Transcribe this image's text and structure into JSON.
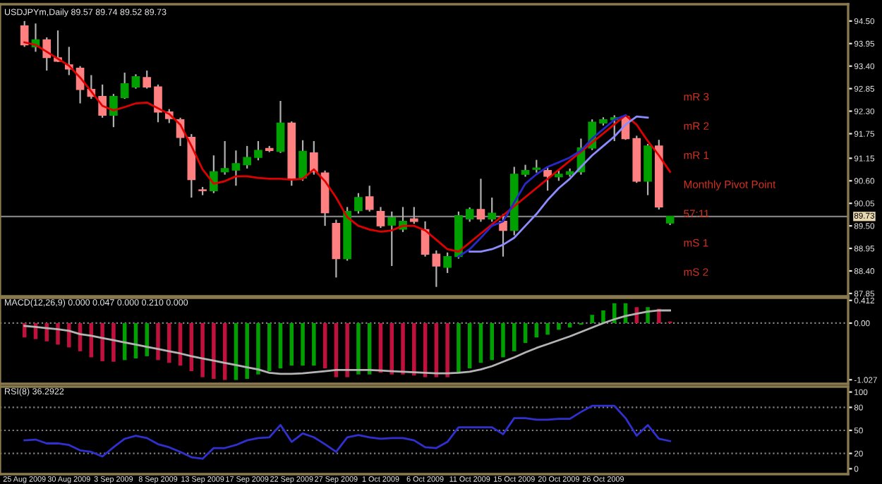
{
  "chart_data": [
    {
      "type": "candlestick",
      "title": "USDJPYm,Daily 89.57 89.74 89.52 89.73",
      "categories": [
        null,
        null,
        null,
        null,
        null,
        null,
        null,
        null,
        null,
        null,
        null,
        null,
        null,
        null,
        null,
        null,
        null,
        null,
        null,
        null,
        null,
        null,
        null,
        null,
        null,
        null,
        null,
        null,
        null,
        null,
        null,
        null,
        null,
        null,
        null,
        null,
        null,
        null,
        null,
        null,
        null,
        null,
        null,
        null,
        null,
        null,
        null,
        null,
        null,
        null,
        null,
        null,
        null,
        null,
        null,
        null,
        null,
        null,
        null
      ],
      "ohlc": [
        [
          94.38,
          94.5,
          93.87,
          93.92
        ],
        [
          93.87,
          94.44,
          93.75,
          94.04
        ],
        [
          94.04,
          94.1,
          93.29,
          93.61
        ],
        [
          93.6,
          94.27,
          93.5,
          93.52
        ],
        [
          93.43,
          93.87,
          93.18,
          93.33
        ],
        [
          93.35,
          93.4,
          92.49,
          92.83
        ],
        [
          92.83,
          93.18,
          92.6,
          92.66
        ],
        [
          92.66,
          92.95,
          92.14,
          92.2
        ],
        [
          92.2,
          92.72,
          91.91,
          92.66
        ],
        [
          92.63,
          93.24,
          92.6,
          92.97
        ],
        [
          92.89,
          93.2,
          92.85,
          93.14
        ],
        [
          93.12,
          93.29,
          92.85,
          92.89
        ],
        [
          92.89,
          92.95,
          92.03,
          92.28
        ],
        [
          92.28,
          92.35,
          92.01,
          92.12
        ],
        [
          92.09,
          92.14,
          91.45,
          91.66
        ],
        [
          91.66,
          91.74,
          90.19,
          90.63
        ],
        [
          90.38,
          90.45,
          90.25,
          90.36
        ],
        [
          90.36,
          91.22,
          90.3,
          90.82
        ],
        [
          90.82,
          91.57,
          90.75,
          90.9
        ],
        [
          90.86,
          91.34,
          90.48,
          91.02
        ],
        [
          90.99,
          91.45,
          90.9,
          91.17
        ],
        [
          91.17,
          91.57,
          91.1,
          91.34
        ],
        [
          91.39,
          91.45,
          91.3,
          91.34
        ],
        [
          91.32,
          92.55,
          91.28,
          92.01
        ],
        [
          92.01,
          92.05,
          90.48,
          90.67
        ],
        [
          90.67,
          91.59,
          90.6,
          91.32
        ],
        [
          91.28,
          91.57,
          90.75,
          90.82
        ],
        [
          90.79,
          90.85,
          89.5,
          89.82
        ],
        [
          89.56,
          89.65,
          88.24,
          88.7
        ],
        [
          88.7,
          89.96,
          88.65,
          89.85
        ],
        [
          89.87,
          90.3,
          89.8,
          90.19
        ],
        [
          90.21,
          90.48,
          89.85,
          89.9
        ],
        [
          89.85,
          89.96,
          89.45,
          89.5
        ],
        [
          89.52,
          89.85,
          88.52,
          89.7
        ],
        [
          89.42,
          89.96,
          89.35,
          89.61
        ],
        [
          89.67,
          89.96,
          89.55,
          89.61
        ],
        [
          89.41,
          89.61,
          88.75,
          88.81
        ],
        [
          88.81,
          88.9,
          88.01,
          88.52
        ],
        [
          88.49,
          88.85,
          88.35,
          88.75
        ],
        [
          88.75,
          89.85,
          88.7,
          89.75
        ],
        [
          89.67,
          89.95,
          89.6,
          89.9
        ],
        [
          89.9,
          90.65,
          89.6,
          89.67
        ],
        [
          89.67,
          90.19,
          89.6,
          89.81
        ],
        [
          89.61,
          89.79,
          88.75,
          89.39
        ],
        [
          89.39,
          90.94,
          89.27,
          90.76
        ],
        [
          90.76,
          90.99,
          90.7,
          90.85
        ],
        [
          90.88,
          91.11,
          90.8,
          90.91
        ],
        [
          90.85,
          90.94,
          90.36,
          90.71
        ],
        [
          90.7,
          90.85,
          90.6,
          90.76
        ],
        [
          90.76,
          90.9,
          90.7,
          90.82
        ],
        [
          90.82,
          91.63,
          90.75,
          91.4
        ],
        [
          91.4,
          92.1,
          91.35,
          92.03
        ],
        [
          92.01,
          92.15,
          91.95,
          92.09
        ],
        [
          92.09,
          92.2,
          91.57,
          92.14
        ],
        [
          92.17,
          92.2,
          91.6,
          91.63
        ],
        [
          91.63,
          91.7,
          90.55,
          90.59
        ],
        [
          90.59,
          91.5,
          90.25,
          91.45
        ],
        [
          91.45,
          91.6,
          89.9,
          89.96
        ],
        [
          89.57,
          89.74,
          89.52,
          89.73
        ]
      ],
      "series": [
        {
          "type": "line",
          "color": "#e00000",
          "values": [
            93.98,
            93.92,
            93.75,
            93.58,
            93.41,
            93.12,
            92.78,
            92.43,
            92.32,
            92.4,
            92.49,
            92.51,
            92.37,
            92.23,
            91.97,
            91.45,
            90.88,
            90.53,
            90.59,
            90.71,
            90.71,
            90.67,
            90.65,
            90.65,
            90.63,
            90.65,
            90.88,
            90.59,
            90.19,
            89.71,
            89.5,
            89.41,
            89.36,
            89.39,
            89.5,
            89.5,
            89.39,
            89.16,
            88.93,
            88.87,
            null,
            null,
            null,
            null,
            null,
            null,
            null,
            null,
            null,
            null,
            null,
            null,
            null,
            null,
            92.2,
            91.97,
            91.57,
            91.22,
            90.82
          ]
        },
        {
          "type": "line",
          "color": "#2828c8",
          "values": [
            null,
            null,
            null,
            null,
            null,
            null,
            null,
            null,
            null,
            null,
            null,
            null,
            null,
            null,
            null,
            null,
            null,
            null,
            null,
            null,
            null,
            null,
            null,
            null,
            null,
            null,
            null,
            null,
            null,
            null,
            null,
            null,
            null,
            null,
            null,
            null,
            null,
            null,
            null,
            88.75,
            88.93,
            89.21,
            89.5,
            89.61,
            90.07,
            90.53,
            90.76,
            90.94,
            91.05,
            91.17,
            91.34,
            91.63,
            91.86,
            92.09,
            92.2,
            null,
            null,
            null,
            null
          ]
        },
        {
          "type": "line",
          "color": "#8c8cff",
          "values": [
            null,
            null,
            null,
            null,
            null,
            null,
            null,
            null,
            null,
            null,
            null,
            null,
            null,
            null,
            null,
            null,
            null,
            null,
            null,
            null,
            null,
            null,
            null,
            null,
            null,
            null,
            null,
            null,
            null,
            null,
            null,
            null,
            null,
            null,
            null,
            null,
            null,
            null,
            null,
            null,
            88.87,
            88.87,
            88.93,
            89.04,
            89.21,
            89.5,
            89.79,
            90.13,
            90.42,
            90.65,
            90.94,
            91.22,
            91.45,
            91.68,
            91.97,
            92.17,
            92.14,
            null,
            null
          ]
        }
      ],
      "ylim": [
        87.78,
        94.91
      ],
      "yticks": [
        {
          "value": 94.5,
          "label": "94.50"
        },
        93.95,
        {
          "value": 93.4,
          "label": "93.40"
        },
        92.85,
        {
          "value": 92.3,
          "label": "92.30"
        },
        91.75,
        91.15,
        {
          "value": 90.6,
          "label": "90.60"
        },
        90.05,
        {
          "value": 89.5,
          "label": "89.50"
        },
        88.95,
        {
          "value": 88.4,
          "label": "88.40"
        },
        87.85
      ],
      "ref_lines": [
        {
          "axis": "y",
          "value": 89.73,
          "label": "89.73",
          "color": "#808080"
        }
      ],
      "annotations": [
        "mR 3",
        "mR 2",
        "mR 1",
        "Monthly Pivot Point",
        "57:11",
        "mS 1",
        "mS 2"
      ],
      "tick_labels": "y"
    },
    {
      "type": "bar",
      "title": "MACD(12,26,9) 0.000 0.047 0.000 0.210 0.000",
      "categories": [
        null,
        null,
        null,
        null,
        null,
        null,
        null,
        null,
        null,
        null,
        null,
        null,
        null,
        null,
        null,
        null,
        null,
        null,
        null,
        null,
        null,
        null,
        null,
        null,
        null,
        null,
        null,
        null,
        null,
        null,
        null,
        null,
        null,
        null,
        null,
        null,
        null,
        null,
        null,
        null,
        null,
        null,
        null,
        null,
        null,
        null,
        null,
        null,
        null,
        null,
        null,
        null,
        null,
        null,
        null,
        null,
        null,
        null,
        null
      ],
      "series": [
        {
          "type": "bar",
          "values": [
            -0.26,
            -0.29,
            -0.33,
            -0.39,
            -0.44,
            -0.51,
            -0.62,
            -0.69,
            -0.7,
            -0.67,
            -0.64,
            -0.6,
            -0.67,
            -0.72,
            -0.77,
            -0.87,
            -0.98,
            -1.01,
            -1.03,
            -1.03,
            -1.01,
            -0.93,
            -0.87,
            -0.82,
            -0.77,
            -0.77,
            -0.77,
            -0.82,
            -0.98,
            -0.98,
            -0.93,
            -0.93,
            -0.9,
            -0.93,
            -0.93,
            -0.95,
            -0.98,
            -0.98,
            -0.98,
            -0.9,
            -0.82,
            -0.72,
            -0.67,
            -0.62,
            -0.51,
            -0.36,
            -0.26,
            -0.21,
            -0.12,
            -0.08,
            -0.03,
            0.15,
            0.23,
            0.36,
            0.36,
            0.29,
            0.29,
            0.26,
            0.03
          ],
          "colors": [
            "#c0103c",
            "#c0103c",
            "#c0103c",
            "#c0103c",
            "#c0103c",
            "#c0103c",
            "#c0103c",
            "#c0103c",
            "#c0103c",
            "#00a000",
            "#00a000",
            "#00a000",
            "#c0103c",
            "#c0103c",
            "#c0103c",
            "#c0103c",
            "#c0103c",
            "#c0103c",
            "#c0103c",
            "#00a000",
            "#00a000",
            "#00a000",
            "#00a000",
            "#00a000",
            "#00a000",
            "#00a000",
            "#00a000",
            "#c0103c",
            "#c0103c",
            "#c0103c",
            "#00a000",
            "#00a000",
            "#c0103c",
            "#c0103c",
            "#c0103c",
            "#c0103c",
            "#c0103c",
            "#c0103c",
            "#c0103c",
            "#00a000",
            "#00a000",
            "#00a000",
            "#00a000",
            "#00a000",
            "#00a000",
            "#00a000",
            "#00a000",
            "#00a000",
            "#00a000",
            "#00a000",
            "#00a000",
            "#00a000",
            "#00a000",
            "#00a000",
            "#00a000",
            "#c0103c",
            "#00a000",
            "#c0103c",
            "#c0103c"
          ]
        },
        {
          "type": "line",
          "color": "#b4b4b4",
          "values": [
            -0.05,
            -0.07,
            -0.09,
            -0.11,
            -0.14,
            -0.2,
            -0.23,
            -0.27,
            -0.31,
            -0.35,
            -0.39,
            -0.43,
            -0.47,
            -0.51,
            -0.55,
            -0.6,
            -0.64,
            -0.68,
            -0.72,
            -0.76,
            -0.8,
            -0.84,
            -0.9,
            -0.92,
            -0.92,
            -0.91,
            -0.89,
            -0.87,
            -0.85,
            -0.85,
            -0.85,
            -0.85,
            -0.86,
            -0.87,
            -0.88,
            -0.89,
            -0.9,
            -0.91,
            -0.91,
            -0.9,
            -0.88,
            -0.84,
            -0.78,
            -0.7,
            -0.62,
            -0.53,
            -0.45,
            -0.38,
            -0.31,
            -0.24,
            -0.16,
            -0.08,
            0.0,
            0.07,
            0.13,
            0.17,
            0.21,
            0.23,
            0.23
          ]
        }
      ],
      "ylim": [
        -1.1,
        0.46
      ],
      "yticks": [
        0.412,
        {
          "value": 0,
          "label": "0.00"
        },
        -1.027
      ],
      "ref_lines": [
        {
          "axis": "y",
          "value": 0,
          "color": "#808080",
          "line_style": "dotted"
        }
      ],
      "tick_labels": "y"
    },
    {
      "type": "line",
      "title": "RSI(8) 36.2922",
      "categories": [
        "25 Aug 2009",
        null,
        null,
        null,
        "30 Aug 2009",
        null,
        null,
        null,
        "3 Sep 2009",
        null,
        null,
        null,
        "8 Sep 2009",
        null,
        null,
        null,
        "13 Sep 2009",
        null,
        null,
        null,
        "17 Sep 2009",
        null,
        null,
        null,
        "22 Sep 2009",
        null,
        null,
        null,
        "27 Sep 2009",
        null,
        null,
        null,
        "1 Oct 2009",
        null,
        null,
        null,
        "6 Oct 2009",
        null,
        null,
        null,
        "11 Oct 2009",
        null,
        null,
        null,
        "15 Oct 2009",
        null,
        null,
        null,
        "20 Oct 2009",
        null,
        null,
        null,
        "26 Oct 2009",
        null,
        null,
        null,
        null,
        null,
        null
      ],
      "values": [
        37,
        38,
        33,
        33,
        31,
        24,
        22,
        16,
        28,
        39,
        43,
        40,
        32,
        28,
        22,
        15,
        13,
        27,
        27,
        31,
        37,
        40,
        41,
        57,
        35,
        46,
        41,
        32,
        22,
        41,
        44,
        41,
        39,
        40,
        40,
        37,
        28,
        27,
        35,
        54,
        54,
        54,
        54,
        45,
        66,
        66,
        64,
        64,
        65,
        65,
        74,
        82,
        82,
        82,
        66,
        43,
        57,
        39,
        36
      ],
      "color": "#3030d0",
      "ylim": [
        -7,
        107
      ],
      "yticks": [
        100,
        80,
        50,
        20,
        0
      ],
      "ref_lines": [
        {
          "axis": "y",
          "value": 80,
          "color": "#808080",
          "line_style": "dotted"
        },
        {
          "axis": "y",
          "value": 50,
          "color": "#808080",
          "line_style": "dotted"
        },
        {
          "axis": "y",
          "value": 20,
          "color": "#808080",
          "line_style": "dotted"
        }
      ]
    }
  ]
}
